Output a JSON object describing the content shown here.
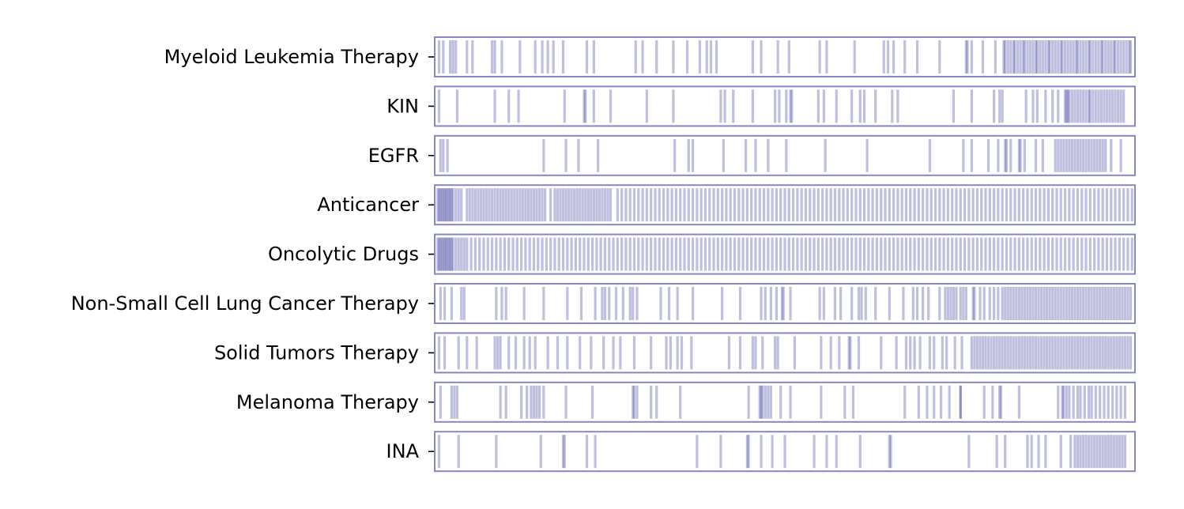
{
  "chart_data": {
    "type": "barcode",
    "title": "",
    "xlabel": "",
    "ylabel": "",
    "x_range": [
      0,
      500
    ],
    "mark_color": "#000080",
    "frame_color": "#8787c3",
    "tracks": [
      {
        "label": "Myeloid Leukemia Therapy",
        "positions": [
          2,
          5,
          10,
          12,
          14,
          22,
          26,
          40,
          42,
          47,
          60,
          71,
          76,
          80,
          84,
          91,
          108,
          113,
          143,
          148,
          158,
          170,
          180,
          189,
          194,
          197,
          201,
          227,
          233,
          245,
          253,
          275,
          280,
          300,
          321,
          324,
          328,
          336,
          345,
          361,
          380,
          381,
          384,
          392,
          401,
          407,
          408,
          410,
          412,
          414,
          415,
          417,
          419,
          421,
          422,
          424,
          426,
          428,
          430,
          431,
          433,
          435,
          437,
          439,
          440,
          442,
          444,
          446,
          448,
          449,
          451,
          453,
          455,
          457,
          459,
          460,
          462,
          464,
          466,
          468,
          469,
          471,
          473,
          475,
          477,
          478,
          480,
          482,
          484,
          486,
          487,
          489,
          491,
          493,
          495,
          497,
          498
        ]
      },
      {
        "label": "KIN",
        "positions": [
          2,
          15,
          42,
          52,
          59,
          92,
          106,
          107,
          113,
          125,
          151,
          170,
          204,
          207,
          213,
          227,
          243,
          246,
          251,
          254,
          255,
          274,
          278,
          287,
          298,
          304,
          307,
          315,
          327,
          331,
          371,
          384,
          400,
          404,
          406,
          423,
          428,
          431,
          437,
          442,
          446,
          451,
          452,
          453,
          454,
          456,
          458,
          460,
          462,
          464,
          466,
          468,
          469,
          471,
          473,
          475,
          477,
          479,
          481,
          483,
          485,
          487,
          489,
          491,
          493
        ]
      },
      {
        "label": "EGFR",
        "positions": [
          3,
          5,
          8,
          77,
          93,
          102,
          116,
          171,
          181,
          184,
          206,
          222,
          229,
          238,
          251,
          279,
          309,
          354,
          378,
          384,
          396,
          403,
          408,
          409,
          412,
          418,
          419,
          422,
          430,
          435,
          444,
          446,
          448,
          450,
          452,
          454,
          456,
          458,
          460,
          462,
          464,
          466,
          468,
          470,
          472,
          474,
          476,
          478,
          480,
          484,
          491
        ]
      },
      {
        "label": "Anticancer",
        "positions": [
          1,
          2,
          3,
          4,
          5,
          6,
          7,
          8,
          9,
          10,
          11,
          12,
          14,
          16,
          18,
          22,
          24,
          26,
          28,
          30,
          32,
          34,
          36,
          38,
          40,
          42,
          44,
          46,
          48,
          50,
          52,
          54,
          56,
          58,
          60,
          62,
          64,
          66,
          68,
          70,
          72,
          74,
          76,
          78,
          82,
          85,
          87,
          89,
          91,
          93,
          95,
          97,
          99,
          101,
          103,
          105,
          107,
          109,
          111,
          113,
          115,
          117,
          119,
          121,
          123,
          125,
          130,
          133,
          136,
          139,
          142,
          145,
          148,
          151,
          154,
          157,
          160,
          163,
          166,
          169,
          172,
          175,
          178,
          181,
          184,
          187,
          190,
          193,
          196,
          199,
          202,
          205,
          208,
          211,
          214,
          217,
          220,
          223,
          226,
          229,
          232,
          235,
          238,
          241,
          244,
          247,
          250,
          253,
          256,
          259,
          262,
          265,
          268,
          271,
          274,
          277,
          280,
          283,
          286,
          289,
          292,
          295,
          298,
          301,
          304,
          307,
          310,
          313,
          316,
          319,
          322,
          325,
          328,
          331,
          334,
          337,
          340,
          343,
          346,
          349,
          352,
          355,
          358,
          361,
          364,
          367,
          370,
          373,
          376,
          379,
          382,
          385,
          388,
          391,
          394,
          397,
          400,
          403,
          406,
          409,
          412,
          415,
          418,
          421,
          424,
          427,
          430,
          433,
          436,
          439,
          442,
          445,
          448,
          451,
          454,
          457,
          460,
          463,
          466,
          469,
          472,
          475,
          478,
          481,
          484,
          487,
          490,
          493,
          496,
          499
        ]
      },
      {
        "label": "Oncolytic Drugs",
        "positions": [
          1,
          2,
          3,
          4,
          5,
          6,
          7,
          8,
          9,
          10,
          11,
          12,
          14,
          16,
          18,
          20,
          22,
          25,
          28,
          31,
          34,
          37,
          40,
          43,
          46,
          49,
          52,
          55,
          58,
          61,
          64,
          67,
          70,
          73,
          76,
          79,
          82,
          85,
          88,
          91,
          94,
          97,
          100,
          103,
          106,
          109,
          112,
          115,
          118,
          121,
          124,
          127,
          130,
          133,
          136,
          139,
          142,
          145,
          148,
          151,
          154,
          157,
          160,
          163,
          166,
          169,
          172,
          175,
          178,
          181,
          184,
          187,
          190,
          193,
          196,
          199,
          202,
          205,
          208,
          211,
          214,
          217,
          220,
          223,
          226,
          229,
          232,
          235,
          238,
          241,
          244,
          247,
          250,
          253,
          256,
          259,
          262,
          265,
          268,
          271,
          274,
          277,
          280,
          283,
          286,
          289,
          292,
          295,
          298,
          301,
          304,
          307,
          310,
          313,
          316,
          319,
          322,
          325,
          328,
          331,
          334,
          337,
          340,
          343,
          346,
          349,
          352,
          355,
          358,
          361,
          364,
          367,
          370,
          373,
          376,
          379,
          382,
          385,
          388,
          391,
          394,
          397,
          400,
          403,
          406,
          409,
          412,
          415,
          418,
          421,
          424,
          427,
          430,
          433,
          436,
          439,
          442,
          445,
          448,
          451,
          454,
          457,
          460,
          463,
          466,
          469,
          472,
          475,
          478,
          481,
          484,
          487,
          490,
          493,
          496,
          499
        ]
      },
      {
        "label": "Non-Small Cell Lung Cancer Therapy",
        "positions": [
          3,
          6,
          11,
          18,
          20,
          43,
          47,
          50,
          63,
          77,
          94,
          104,
          114,
          119,
          121,
          124,
          129,
          134,
          139,
          141,
          144,
          161,
          167,
          173,
          184,
          205,
          218,
          233,
          236,
          240,
          244,
          248,
          249,
          254,
          275,
          278,
          286,
          290,
          298,
          303,
          305,
          308,
          315,
          325,
          335,
          342,
          345,
          349,
          353,
          361,
          365,
          367,
          369,
          371,
          373,
          376,
          378,
          380,
          385,
          386,
          390,
          393,
          397,
          400,
          403,
          406,
          408,
          410,
          412,
          414,
          416,
          418,
          420,
          422,
          424,
          426,
          428,
          430,
          432,
          434,
          436,
          438,
          440,
          442,
          444,
          446,
          448,
          450,
          452,
          454,
          456,
          458,
          460,
          462,
          464,
          466,
          468,
          470,
          472,
          474,
          476,
          478,
          480,
          482,
          484,
          486,
          488,
          490,
          492,
          494,
          496,
          498
        ]
      },
      {
        "label": "Solid Tumors Therapy",
        "positions": [
          2,
          6,
          16,
          22,
          29,
          42,
          44,
          46,
          52,
          57,
          63,
          67,
          71,
          80,
          87,
          94,
          103,
          111,
          120,
          127,
          132,
          142,
          154,
          165,
          168,
          173,
          176,
          183,
          210,
          218,
          227,
          229,
          234,
          243,
          245,
          257,
          276,
          283,
          289,
          296,
          297,
          303,
          319,
          330,
          337,
          340,
          343,
          347,
          354,
          357,
          363,
          366,
          372,
          377,
          384,
          386,
          388,
          390,
          392,
          394,
          396,
          398,
          400,
          402,
          404,
          406,
          408,
          410,
          412,
          414,
          416,
          418,
          420,
          422,
          424,
          426,
          428,
          430,
          432,
          434,
          436,
          438,
          440,
          442,
          444,
          446,
          448,
          450,
          452,
          454,
          456,
          458,
          460,
          462,
          464,
          466,
          468,
          470,
          472,
          474,
          476,
          478,
          480,
          482,
          484,
          486,
          488,
          490,
          492,
          494,
          496,
          498
        ]
      },
      {
        "label": "Melanoma Therapy",
        "positions": [
          3,
          11,
          13,
          15,
          46,
          50,
          61,
          65,
          68,
          70,
          72,
          74,
          77,
          93,
          112,
          141,
          142,
          144,
          154,
          158,
          175,
          224,
          232,
          233,
          234,
          236,
          238,
          240,
          247,
          254,
          276,
          293,
          299,
          336,
          346,
          352,
          357,
          362,
          368,
          376,
          376,
          393,
          399,
          405,
          404,
          418,
          446,
          449,
          450,
          452,
          454,
          457,
          460,
          462,
          465,
          468,
          470,
          473,
          476,
          479,
          482,
          485,
          488,
          491,
          494
        ]
      },
      {
        "label": "INA",
        "positions": [
          2,
          16,
          43,
          75,
          91,
          92,
          108,
          114,
          187,
          204,
          223,
          224,
          233,
          241,
          250,
          271,
          280,
          287,
          304,
          325,
          326,
          382,
          402,
          408,
          424,
          427,
          432,
          437,
          448,
          455,
          458,
          460,
          462,
          464,
          466,
          468,
          470,
          472,
          474,
          476,
          478,
          480,
          482,
          484,
          486,
          488,
          490,
          492,
          494
        ]
      }
    ]
  }
}
